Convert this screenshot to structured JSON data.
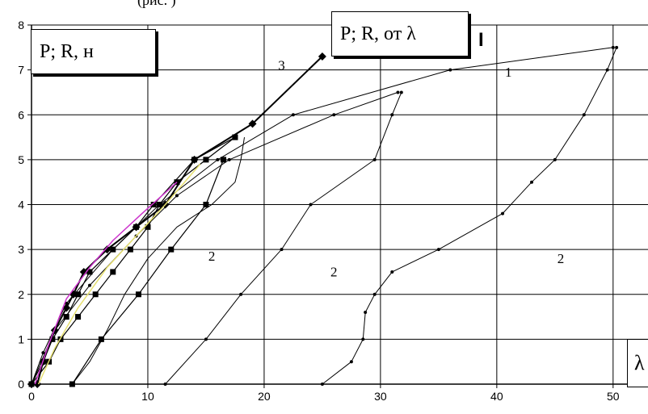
{
  "top_fragment": "(рис. )",
  "ylabel_box": "P; R, н",
  "title_box": "P; R, от λ",
  "xlabel_box": "λ",
  "marker_text": "I",
  "colors": {
    "line": "#000000",
    "grid": "#000000",
    "magenta": "#cc33cc",
    "yellow": "#e6e070"
  },
  "chart_data": {
    "type": "line",
    "title": "P; R, от λ",
    "ylabel": "P; R, н",
    "xlabel": "λ",
    "xlim": [
      0,
      53
    ],
    "ylim": [
      0,
      8
    ],
    "x_ticks": [
      0,
      10,
      20,
      30,
      40,
      50
    ],
    "y_ticks": [
      0,
      1,
      2,
      3,
      4,
      5,
      6,
      7,
      8
    ],
    "grid": true,
    "annotations": [
      {
        "text": "1",
        "x": 41.0,
        "y": 6.85
      },
      {
        "text": "2",
        "x": 15.5,
        "y": 2.75
      },
      {
        "text": "2",
        "x": 26.0,
        "y": 2.4
      },
      {
        "text": "2",
        "x": 45.5,
        "y": 2.7
      },
      {
        "text": "3",
        "x": 21.5,
        "y": 7.0
      }
    ],
    "series": [
      {
        "color": "#000000",
        "marker": "diamond",
        "width": 2.0,
        "points": [
          [
            0,
            0
          ],
          [
            0.5,
            0
          ],
          [
            1,
            0.5
          ],
          [
            2,
            1.2
          ],
          [
            3,
            1.7
          ],
          [
            3.6,
            2
          ],
          [
            4.5,
            2.5
          ],
          [
            6.5,
            3
          ],
          [
            9,
            3.5
          ],
          [
            11.5,
            4
          ],
          [
            14,
            5
          ],
          [
            19,
            5.8
          ],
          [
            25,
            7.3
          ]
        ]
      },
      {
        "color": "#000000",
        "marker": "dot",
        "width": 1.0,
        "points": [
          [
            0,
            0
          ],
          [
            1,
            0.7
          ],
          [
            3,
            1.8
          ],
          [
            7,
            3
          ],
          [
            11,
            4
          ],
          [
            16,
            5
          ],
          [
            22.5,
            6
          ],
          [
            36,
            7
          ],
          [
            50,
            7.5
          ]
        ]
      },
      {
        "color": "#000000",
        "marker": "dot",
        "width": 1.0,
        "points": [
          [
            0,
            0
          ],
          [
            2,
            1.2
          ],
          [
            5,
            2.2
          ],
          [
            9,
            3.3
          ],
          [
            12.5,
            4.2
          ],
          [
            17,
            5
          ],
          [
            26,
            6
          ],
          [
            31.5,
            6.5
          ]
        ]
      },
      {
        "color": "#000000",
        "marker": "dot",
        "width": 1.0,
        "points": [
          [
            11.5,
            0
          ],
          [
            15,
            1
          ],
          [
            18,
            2
          ],
          [
            21.5,
            3
          ],
          [
            24,
            4
          ],
          [
            29.5,
            5
          ],
          [
            31,
            6
          ],
          [
            31.8,
            6.5
          ]
        ]
      },
      {
        "color": "#000000",
        "marker": "dot",
        "width": 1.0,
        "points": [
          [
            25,
            0
          ],
          [
            27.5,
            0.5
          ],
          [
            28.5,
            1
          ],
          [
            28.7,
            1.6
          ],
          [
            29.5,
            2
          ],
          [
            31,
            2.5
          ],
          [
            35,
            3
          ],
          [
            40.5,
            3.8
          ],
          [
            43,
            4.5
          ],
          [
            45,
            5
          ],
          [
            47.5,
            6
          ],
          [
            49.5,
            7
          ],
          [
            50.3,
            7.5
          ]
        ]
      },
      {
        "color": "#000000",
        "marker": "square",
        "width": 1.2,
        "points": [
          [
            0,
            0
          ],
          [
            1,
            0.5
          ],
          [
            1.8,
            1
          ],
          [
            3,
            1.5
          ],
          [
            4,
            2
          ],
          [
            5,
            2.5
          ],
          [
            7,
            3
          ],
          [
            9,
            3.5
          ],
          [
            10.5,
            4
          ],
          [
            14,
            5
          ],
          [
            17.5,
            5.5
          ]
        ]
      },
      {
        "color": "#000000",
        "marker": "square",
        "width": 1.2,
        "points": [
          [
            0,
            0
          ],
          [
            1.5,
            0.5
          ],
          [
            2.5,
            1
          ],
          [
            4,
            1.5
          ],
          [
            5.5,
            2
          ],
          [
            7,
            2.5
          ],
          [
            8.5,
            3
          ],
          [
            10,
            3.5
          ],
          [
            11,
            4
          ],
          [
            12.5,
            4.5
          ],
          [
            15,
            5
          ],
          [
            17.5,
            5.5
          ]
        ]
      },
      {
        "color": "#000000",
        "marker": "square",
        "width": 1.2,
        "points": [
          [
            3.5,
            0
          ],
          [
            6,
            1
          ],
          [
            9.2,
            2
          ],
          [
            12,
            3
          ],
          [
            15,
            4
          ],
          [
            16.5,
            5
          ]
        ]
      },
      {
        "color": "#000000",
        "marker": "none",
        "width": 1.0,
        "points": [
          [
            3.5,
            0
          ],
          [
            5,
            0.5
          ],
          [
            6.5,
            1.2
          ],
          [
            8,
            2
          ],
          [
            10,
            2.8
          ],
          [
            12.5,
            3.5
          ],
          [
            15.5,
            4
          ],
          [
            17.5,
            4.5
          ],
          [
            18,
            5
          ],
          [
            18.3,
            5.5
          ]
        ]
      },
      {
        "color": "#cc33cc",
        "marker": "none",
        "width": 1.5,
        "points": [
          [
            0.3,
            0
          ],
          [
            1.5,
            0.9
          ],
          [
            3,
            1.9
          ],
          [
            5,
            2.6
          ],
          [
            7,
            3.2
          ],
          [
            9.5,
            3.8
          ],
          [
            12.5,
            4.5
          ]
        ]
      },
      {
        "color": "#e6e070",
        "marker": "none",
        "width": 1.5,
        "points": [
          [
            0.6,
            0
          ],
          [
            2,
            0.8
          ],
          [
            4,
            1.7
          ],
          [
            6.5,
            2.6
          ],
          [
            9,
            3.3
          ],
          [
            11.5,
            4
          ],
          [
            14.5,
            4.9
          ]
        ]
      }
    ]
  }
}
